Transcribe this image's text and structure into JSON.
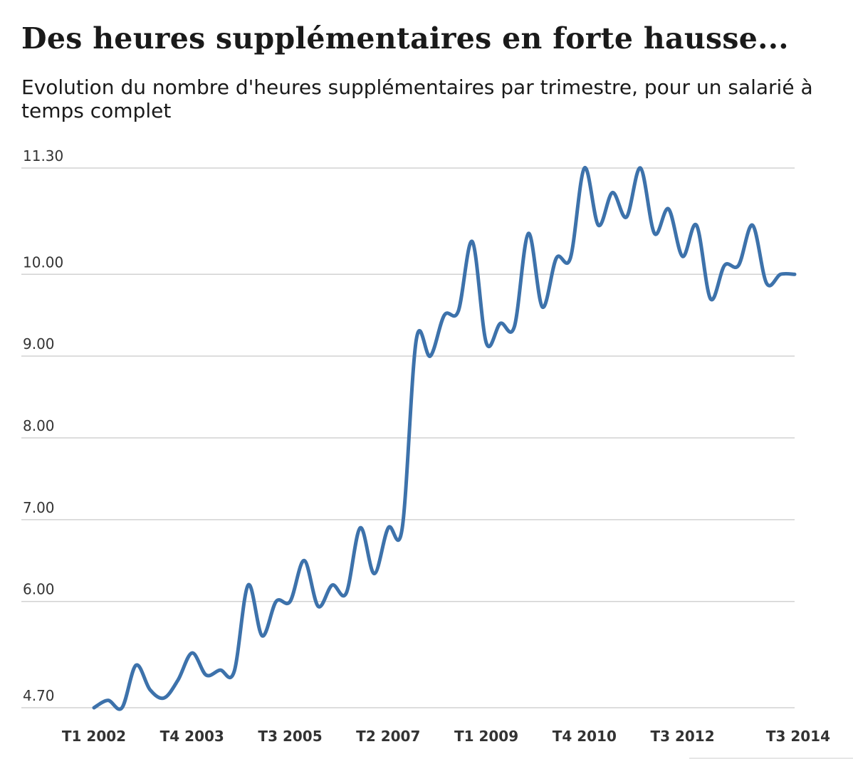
{
  "title": "Des heures supplémentaires en forte hausse...",
  "subtitle": "Evolution du nombre d'heures supplémentaires par trimestre, pour un salarié à temps complet",
  "colors": {
    "line": "#3d72ab",
    "grid": "#d2d2d2",
    "text": "#1a1a1a"
  },
  "chart_data": {
    "type": "line",
    "title": "Des heures supplémentaires en forte hausse...",
    "subtitle": "Evolution du nombre d'heures supplémentaires par trimestre, pour un salarié à temps complet",
    "xlabel": "",
    "ylabel": "",
    "grid": true,
    "legend": "none",
    "ylim": [
      4.7,
      11.3
    ],
    "y_ticks": [
      "4.70",
      "6.00",
      "7.00",
      "8.00",
      "9.00",
      "10.00",
      "11.30"
    ],
    "x_tick_labels": [
      "T1 2002",
      "T4 2003",
      "T3 2005",
      "T2 2007",
      "T1 2009",
      "T4 2010",
      "T3 2012",
      "T3 2014"
    ],
    "x": [
      "T1 2002",
      "T2 2002",
      "T3 2002",
      "T4 2002",
      "T1 2003",
      "T2 2003",
      "T3 2003",
      "T4 2003",
      "T1 2004",
      "T2 2004",
      "T3 2004",
      "T4 2004",
      "T1 2005",
      "T2 2005",
      "T3 2005",
      "T4 2005",
      "T1 2006",
      "T2 2006",
      "T3 2006",
      "T4 2006",
      "T1 2007",
      "T2 2007",
      "T3 2007",
      "T4 2007",
      "T1 2008",
      "T2 2008",
      "T3 2008",
      "T4 2008",
      "T1 2009",
      "T2 2009",
      "T3 2009",
      "T4 2009",
      "T1 2010",
      "T2 2010",
      "T3 2010",
      "T4 2010",
      "T1 2011",
      "T2 2011",
      "T3 2011",
      "T4 2011",
      "T1 2012",
      "T2 2012",
      "T3 2012",
      "T4 2012",
      "T1 2013",
      "T2 2013",
      "T3 2013",
      "T4 2013",
      "T1 2014",
      "T2 2014",
      "T3 2014"
    ],
    "series": [
      {
        "values": [
          4.7,
          4.79,
          4.7,
          5.22,
          4.92,
          4.82,
          5.04,
          5.37,
          5.1,
          5.16,
          5.14,
          6.2,
          5.58,
          6.0,
          6.0,
          6.5,
          5.94,
          6.2,
          6.1,
          6.9,
          6.34,
          6.9,
          6.9,
          9.2,
          9.0,
          9.5,
          9.55,
          10.4,
          9.16,
          9.4,
          9.36,
          10.5,
          9.6,
          10.2,
          10.2,
          11.3,
          10.6,
          11.0,
          10.7,
          11.3,
          10.5,
          10.8,
          10.22,
          10.6,
          9.7,
          10.11,
          10.11,
          10.6,
          9.89,
          10.0,
          10.0
        ]
      }
    ]
  }
}
